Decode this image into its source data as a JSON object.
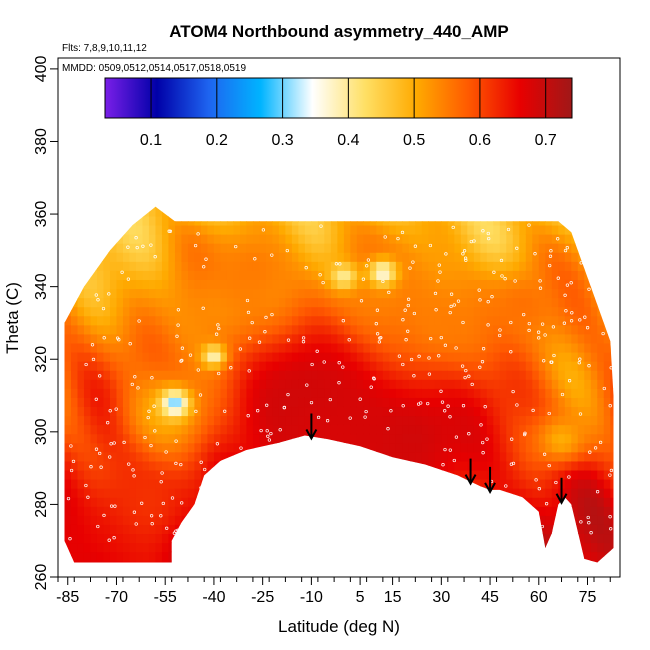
{
  "chart_data": {
    "type": "heatmap",
    "title": "ATOM4 Northbound asymmetry_440_AMP",
    "flights_note": "Flts: 7,8,9,10,11,12",
    "dates_note": "MMDD: 0509,0512,0514,0517,0518,0519",
    "xlabel": "Latitude (deg N)",
    "ylabel": "Theta (C)",
    "xlim": [
      -88,
      85
    ],
    "ylim": [
      260,
      403
    ],
    "xticks": [
      -85,
      -70,
      -55,
      -40,
      -25,
      -10,
      5,
      15,
      30,
      45,
      60,
      75
    ],
    "yticks": [
      260,
      280,
      300,
      320,
      340,
      360,
      380,
      400
    ],
    "colorbar": {
      "range": [
        0.03,
        0.74
      ],
      "ticks": [
        0.1,
        0.2,
        0.3,
        0.4,
        0.5,
        0.6,
        0.7
      ],
      "tick_labels": [
        "0.1",
        "0.2",
        "0.3",
        "0.4",
        "0.5",
        "0.6",
        "0.7"
      ],
      "colors": [
        "#7a1fe8",
        "#0000a8",
        "#1e64f0",
        "#00b4ff",
        "#ffffff",
        "#ffe066",
        "#ffaa00",
        "#ff5a00",
        "#e80000",
        "#a01818"
      ]
    },
    "domain_top": [
      [
        -86,
        330
      ],
      [
        -80,
        340
      ],
      [
        -72,
        350
      ],
      [
        -65,
        357
      ],
      [
        -58,
        362
      ],
      [
        -52,
        358
      ],
      [
        -40,
        358
      ],
      [
        -20,
        358
      ],
      [
        0,
        358
      ],
      [
        20,
        358
      ],
      [
        45,
        358
      ],
      [
        66,
        358
      ],
      [
        70,
        355
      ],
      [
        74,
        345
      ],
      [
        78,
        335
      ],
      [
        82,
        325
      ],
      [
        83,
        310
      ],
      [
        83,
        280
      ],
      [
        83,
        268
      ]
    ],
    "domain_bottom": [
      [
        83,
        268
      ],
      [
        78,
        264
      ],
      [
        74,
        265
      ],
      [
        70,
        280
      ],
      [
        68,
        282
      ],
      [
        66,
        280
      ],
      [
        64,
        272
      ],
      [
        62,
        268
      ],
      [
        60,
        278
      ],
      [
        55,
        282
      ],
      [
        48,
        284
      ],
      [
        45,
        284
      ],
      [
        42,
        285
      ],
      [
        35,
        288
      ],
      [
        25,
        291
      ],
      [
        15,
        293
      ],
      [
        5,
        296
      ],
      [
        -5,
        298
      ],
      [
        -12,
        299
      ],
      [
        -20,
        297
      ],
      [
        -30,
        295
      ],
      [
        -38,
        292
      ],
      [
        -43,
        288
      ],
      [
        -46,
        280
      ],
      [
        -50,
        275
      ],
      [
        -53,
        270
      ],
      [
        -53,
        264
      ],
      [
        -83,
        264
      ],
      [
        -86,
        270
      ]
    ],
    "features": [
      {
        "lat": -10,
        "theta": 308,
        "value": 0.7,
        "radius": 22
      },
      {
        "lat": 20,
        "theta": 300,
        "value": 0.69,
        "radius": 18
      },
      {
        "lat": -5,
        "theta": 298,
        "value": 0.68,
        "radius": 16
      },
      {
        "lat": -70,
        "theta": 272,
        "value": 0.66,
        "radius": 14
      },
      {
        "lat": -60,
        "theta": 280,
        "value": 0.62,
        "radius": 10
      },
      {
        "lat": -55,
        "theta": 305,
        "value": 0.5,
        "radius": 10
      },
      {
        "lat": -38,
        "theta": 335,
        "value": 0.53,
        "radius": 12
      },
      {
        "lat": -28,
        "theta": 345,
        "value": 0.55,
        "radius": 10
      },
      {
        "lat": 30,
        "theta": 330,
        "value": 0.55,
        "radius": 12
      },
      {
        "lat": 55,
        "theta": 335,
        "value": 0.56,
        "radius": 10
      },
      {
        "lat": 67,
        "theta": 298,
        "value": 0.5,
        "radius": 6
      },
      {
        "lat": 12,
        "theta": 340,
        "value": 0.54,
        "radius": 12
      },
      {
        "lat": -52,
        "theta": 308,
        "value": 0.3,
        "radius": 3
      },
      {
        "lat": -40,
        "theta": 321,
        "value": 0.38,
        "radius": 2.5
      },
      {
        "lat": 0,
        "theta": 343,
        "value": 0.4,
        "radius": 3
      },
      {
        "lat": 12,
        "theta": 344,
        "value": 0.36,
        "radius": 3
      }
    ],
    "arrows_latitudes": [
      -10,
      39,
      45,
      67
    ],
    "sample_points_note": "white circles mark sample locations"
  }
}
